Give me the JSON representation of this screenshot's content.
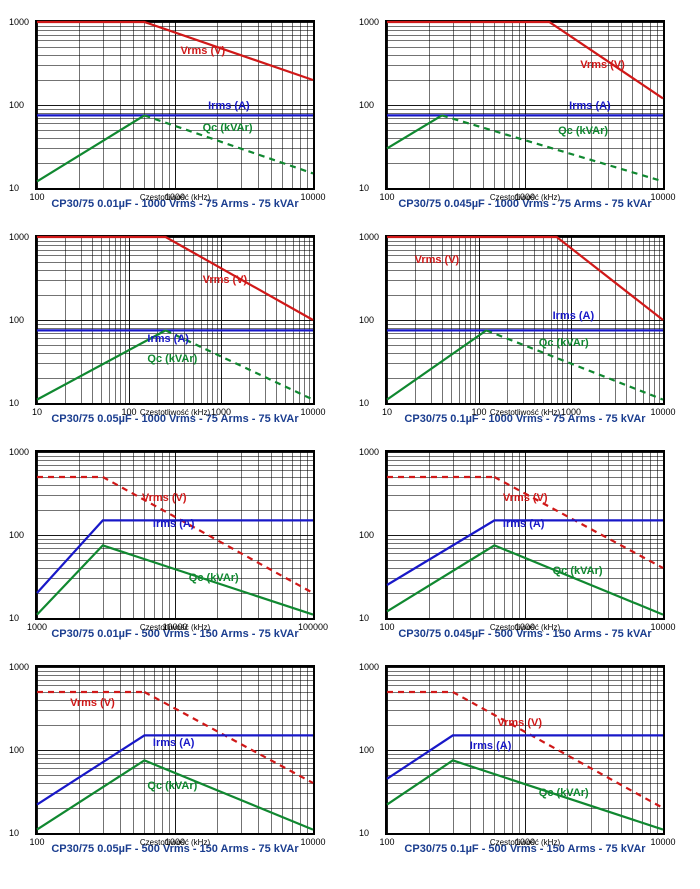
{
  "layout": {
    "rows": 4,
    "cols": 2
  },
  "common": {
    "ylim": [
      10,
      1000
    ],
    "yticks": [
      10,
      100,
      1000
    ],
    "ytick_labels": [
      "10",
      "100",
      "1000"
    ],
    "log_minors": [
      2,
      3,
      4,
      5,
      6,
      7,
      8,
      9
    ],
    "xlabel": "Częstotliwość (kHz)",
    "series_labels": {
      "vrms": "Vrms (V)",
      "irms": "Irms (A)",
      "qc": "Qc (kVAr)"
    },
    "colors": {
      "vrms": "#d01818",
      "irms": "#1818c8",
      "qc": "#108830",
      "grid": "#000000",
      "caption": "#1a3d8f",
      "background": "#ffffff"
    },
    "line_width": 2.2,
    "dash_pattern": "6,5",
    "font_size_labels": 11,
    "font_size_ticks": 9
  },
  "charts": [
    {
      "id": "c1",
      "caption": "CP30/75 0.01µF - 1000 Vrms - 75 Arms - 75 kVAr",
      "xlim": [
        100,
        10000
      ],
      "xticks": [
        100,
        1000,
        10000
      ],
      "xtick_labels": [
        "100",
        "1000",
        "10000"
      ],
      "series": [
        {
          "name": "vrms",
          "style": "solid",
          "points": [
            [
              100,
              1000
            ],
            [
              600,
              1000
            ],
            [
              10000,
              200
            ]
          ]
        },
        {
          "name": "irms",
          "style": "solid",
          "points": [
            [
              100,
              75
            ],
            [
              600,
              75
            ],
            [
              10000,
              75
            ]
          ]
        },
        {
          "name": "qc_rise",
          "color_key": "qc",
          "style": "solid",
          "points": [
            [
              100,
              12
            ],
            [
              600,
              75
            ]
          ]
        },
        {
          "name": "qc_fall",
          "color_key": "qc",
          "style": "dashed",
          "points": [
            [
              600,
              75
            ],
            [
              10000,
              15
            ]
          ]
        }
      ],
      "label_pos": {
        "vrms": [
          0.52,
          0.14
        ],
        "irms": [
          0.62,
          0.47
        ],
        "qc": [
          0.6,
          0.6
        ]
      }
    },
    {
      "id": "c2",
      "caption": "CP30/75 0.045µF - 1000 Vrms - 75 Arms - 75 kVAr",
      "xlim": [
        100,
        10000
      ],
      "xticks": [
        100,
        1000,
        10000
      ],
      "xtick_labels": [
        "100",
        "1000",
        "10000"
      ],
      "series": [
        {
          "name": "vrms",
          "style": "solid",
          "points": [
            [
              100,
              1000
            ],
            [
              1500,
              1000
            ],
            [
              10000,
              120
            ]
          ]
        },
        {
          "name": "irms",
          "style": "solid",
          "points": [
            [
              100,
              75
            ],
            [
              250,
              75
            ],
            [
              10000,
              75
            ]
          ]
        },
        {
          "name": "qc_rise",
          "color_key": "qc",
          "style": "solid",
          "points": [
            [
              100,
              30
            ],
            [
              250,
              75
            ]
          ]
        },
        {
          "name": "qc_fall",
          "color_key": "qc",
          "style": "dashed",
          "points": [
            [
              250,
              75
            ],
            [
              10000,
              12
            ]
          ]
        }
      ],
      "label_pos": {
        "vrms": [
          0.7,
          0.22
        ],
        "irms": [
          0.66,
          0.47
        ],
        "qc": [
          0.62,
          0.62
        ]
      }
    },
    {
      "id": "c3",
      "caption": "CP30/75 0.05µF - 1000 Vrms - 75 Arms - 75 kVAr",
      "xlim": [
        10,
        10000
      ],
      "xticks": [
        10,
        100,
        1000,
        10000
      ],
      "xtick_labels": [
        "10",
        "100",
        "1000",
        "10000"
      ],
      "series": [
        {
          "name": "vrms",
          "style": "solid",
          "points": [
            [
              10,
              1000
            ],
            [
              250,
              1000
            ],
            [
              10000,
              100
            ]
          ]
        },
        {
          "name": "irms",
          "style": "solid",
          "points": [
            [
              10,
              75
            ],
            [
              250,
              75
            ],
            [
              10000,
              75
            ]
          ]
        },
        {
          "name": "qc_rise",
          "color_key": "qc",
          "style": "solid",
          "points": [
            [
              10,
              11
            ],
            [
              250,
              75
            ]
          ]
        },
        {
          "name": "qc_fall",
          "color_key": "qc",
          "style": "dashed",
          "points": [
            [
              250,
              75
            ],
            [
              10000,
              11
            ]
          ]
        }
      ],
      "label_pos": {
        "vrms": [
          0.6,
          0.22
        ],
        "irms": [
          0.4,
          0.58
        ],
        "qc": [
          0.4,
          0.7
        ]
      }
    },
    {
      "id": "c4",
      "caption": "CP30/75 0.1µF - 1000 Vrms - 75 Arms - 75 kVAr",
      "xlim": [
        10,
        10000
      ],
      "xticks": [
        10,
        100,
        1000,
        10000
      ],
      "xtick_labels": [
        "10",
        "100",
        "1000",
        "10000"
      ],
      "series": [
        {
          "name": "vrms",
          "style": "solid",
          "points": [
            [
              10,
              1000
            ],
            [
              700,
              1000
            ],
            [
              10000,
              100
            ]
          ]
        },
        {
          "name": "irms",
          "style": "solid",
          "points": [
            [
              10,
              75
            ],
            [
              120,
              75
            ],
            [
              10000,
              75
            ]
          ]
        },
        {
          "name": "qc_rise",
          "color_key": "qc",
          "style": "solid",
          "points": [
            [
              10,
              11
            ],
            [
              120,
              75
            ]
          ]
        },
        {
          "name": "qc_fall",
          "color_key": "qc",
          "style": "dashed",
          "points": [
            [
              120,
              75
            ],
            [
              10000,
              11
            ]
          ]
        }
      ],
      "label_pos": {
        "vrms": [
          0.1,
          0.1
        ],
        "irms": [
          0.6,
          0.44
        ],
        "qc": [
          0.55,
          0.6
        ]
      }
    },
    {
      "id": "c5",
      "caption": "CP30/75 0.01µF - 500 Vrms - 150 Arms - 75 kVAr",
      "xlim": [
        1000,
        100000
      ],
      "xticks": [
        1000,
        10000,
        100000
      ],
      "xtick_labels": [
        "1000",
        "10000",
        "100000"
      ],
      "series": [
        {
          "name": "vrms_flat",
          "color_key": "vrms",
          "style": "dashed",
          "points": [
            [
              1000,
              500
            ],
            [
              3000,
              500
            ]
          ]
        },
        {
          "name": "vrms_fall",
          "color_key": "vrms",
          "style": "dashed",
          "points": [
            [
              3000,
              500
            ],
            [
              100000,
              20
            ]
          ]
        },
        {
          "name": "irms",
          "style": "solid",
          "points": [
            [
              1000,
              20
            ],
            [
              3000,
              150
            ],
            [
              100000,
              150
            ]
          ]
        },
        {
          "name": "qc",
          "style": "solid",
          "points": [
            [
              1000,
              11
            ],
            [
              3000,
              75
            ],
            [
              100000,
              11
            ]
          ]
        }
      ],
      "label_pos": {
        "vrms": [
          0.38,
          0.24
        ],
        "irms": [
          0.42,
          0.4
        ],
        "qc": [
          0.55,
          0.72
        ]
      }
    },
    {
      "id": "c6",
      "caption": "CP30/75 0.045µF - 500 Vrms - 150 Arms - 75 kVAr",
      "xlim": [
        100,
        10000
      ],
      "xticks": [
        100,
        1000,
        10000
      ],
      "xtick_labels": [
        "100",
        "1000",
        "10000"
      ],
      "series": [
        {
          "name": "vrms_flat",
          "color_key": "vrms",
          "style": "dashed",
          "points": [
            [
              100,
              500
            ],
            [
              600,
              500
            ]
          ]
        },
        {
          "name": "vrms_fall",
          "color_key": "vrms",
          "style": "dashed",
          "points": [
            [
              600,
              500
            ],
            [
              10000,
              40
            ]
          ]
        },
        {
          "name": "irms",
          "style": "solid",
          "points": [
            [
              100,
              25
            ],
            [
              600,
              150
            ],
            [
              10000,
              150
            ]
          ]
        },
        {
          "name": "qc",
          "style": "solid",
          "points": [
            [
              100,
              12
            ],
            [
              600,
              75
            ],
            [
              10000,
              11
            ]
          ]
        }
      ],
      "label_pos": {
        "vrms": [
          0.42,
          0.24
        ],
        "irms": [
          0.42,
          0.4
        ],
        "qc": [
          0.6,
          0.68
        ]
      }
    },
    {
      "id": "c7",
      "caption": "CP30/75 0.05µF - 500 Vrms - 150 Arms - 75 kVAr",
      "xlim": [
        100,
        10000
      ],
      "xticks": [
        100,
        1000,
        10000
      ],
      "xtick_labels": [
        "100",
        "1000",
        "10000"
      ],
      "series": [
        {
          "name": "vrms_flat",
          "color_key": "vrms",
          "style": "dashed",
          "points": [
            [
              100,
              500
            ],
            [
              600,
              500
            ]
          ]
        },
        {
          "name": "vrms_fall",
          "color_key": "vrms",
          "style": "dashed",
          "points": [
            [
              600,
              500
            ],
            [
              10000,
              40
            ]
          ]
        },
        {
          "name": "irms",
          "style": "solid",
          "points": [
            [
              100,
              22
            ],
            [
              600,
              150
            ],
            [
              10000,
              150
            ]
          ]
        },
        {
          "name": "qc",
          "style": "solid",
          "points": [
            [
              100,
              11
            ],
            [
              600,
              75
            ],
            [
              10000,
              11
            ]
          ]
        }
      ],
      "label_pos": {
        "vrms": [
          0.12,
          0.18
        ],
        "irms": [
          0.42,
          0.42
        ],
        "qc": [
          0.4,
          0.68
        ]
      }
    },
    {
      "id": "c8",
      "caption": "CP30/75 0.1µF - 500 Vrms - 150 Arms - 75 kVAr",
      "xlim": [
        100,
        10000
      ],
      "xticks": [
        100,
        1000,
        10000
      ],
      "xtick_labels": [
        "100",
        "1000",
        "10000"
      ],
      "series": [
        {
          "name": "vrms_flat",
          "color_key": "vrms",
          "style": "dashed",
          "points": [
            [
              100,
              500
            ],
            [
              300,
              500
            ]
          ]
        },
        {
          "name": "vrms_fall",
          "color_key": "vrms",
          "style": "dashed",
          "points": [
            [
              300,
              500
            ],
            [
              10000,
              20
            ]
          ]
        },
        {
          "name": "irms",
          "style": "solid",
          "points": [
            [
              100,
              45
            ],
            [
              300,
              150
            ],
            [
              10000,
              150
            ]
          ]
        },
        {
          "name": "qc",
          "style": "solid",
          "points": [
            [
              100,
              22
            ],
            [
              300,
              75
            ],
            [
              10000,
              11
            ]
          ]
        }
      ],
      "label_pos": {
        "vrms": [
          0.4,
          0.3
        ],
        "irms": [
          0.3,
          0.44
        ],
        "qc": [
          0.55,
          0.72
        ]
      }
    }
  ]
}
